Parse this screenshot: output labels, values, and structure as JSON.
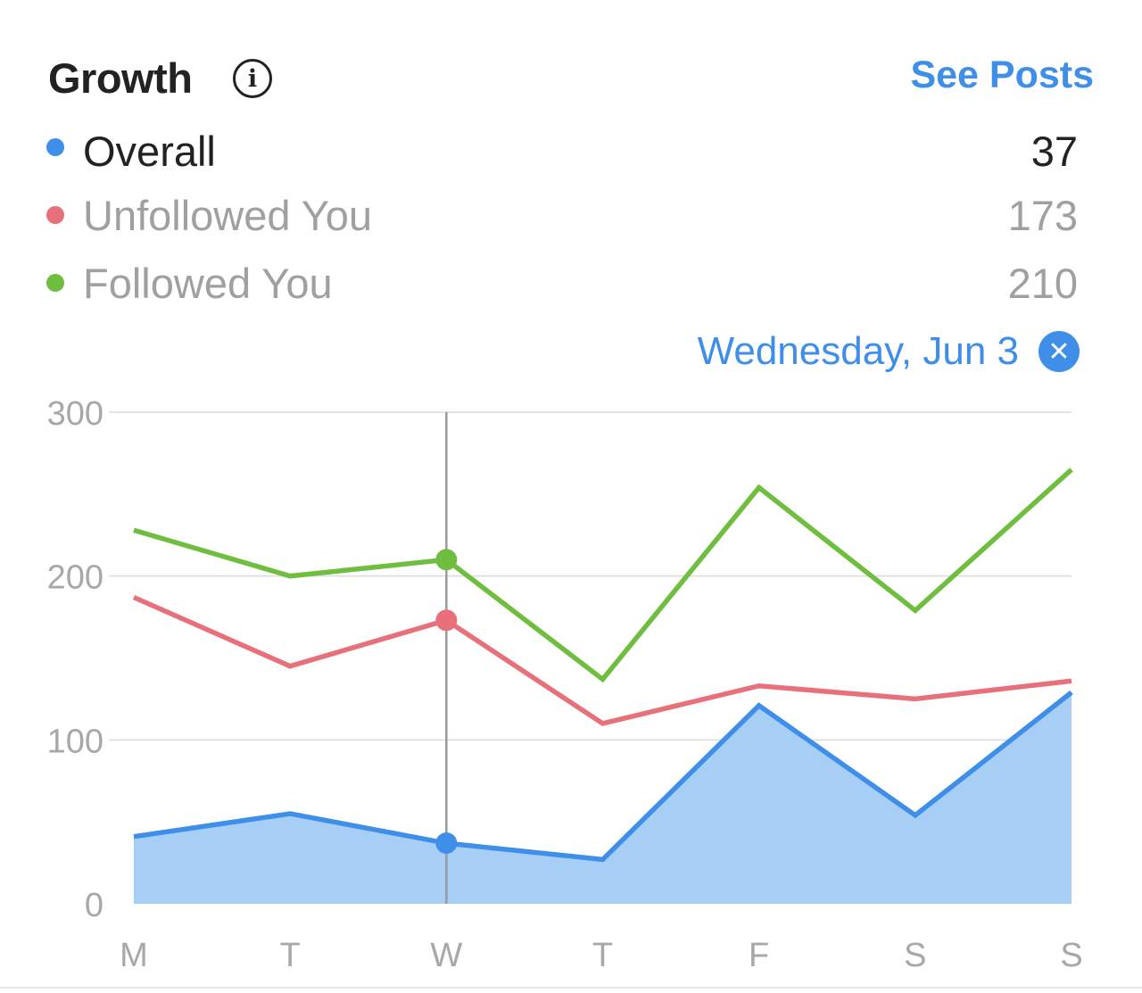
{
  "header": {
    "title": "Growth",
    "info_icon": "info-icon",
    "see_posts_label": "See Posts"
  },
  "legend": [
    {
      "label": "Overall",
      "value": "37",
      "color": "#3f8ee8"
    },
    {
      "label": "Unfollowed You",
      "value": "173",
      "color": "#e8707a"
    },
    {
      "label": "Followed You",
      "value": "210",
      "color": "#6fbe3f"
    }
  ],
  "selection": {
    "date_label": "Wednesday, Jun 3",
    "close_icon": "close-icon",
    "selected_index": 2
  },
  "chart_data": {
    "type": "line",
    "categories": [
      "M",
      "T",
      "W",
      "T",
      "F",
      "S",
      "S"
    ],
    "ylim": [
      0,
      300
    ],
    "yticks": [
      "0",
      "100",
      "200",
      "300"
    ],
    "grid": true,
    "series": [
      {
        "name": "Followed You",
        "color": "#6fbe3f",
        "values": [
          228,
          200,
          210,
          137,
          254,
          179,
          265
        ]
      },
      {
        "name": "Unfollowed You",
        "color": "#e8707a",
        "values": [
          187,
          145,
          173,
          110,
          133,
          125,
          136
        ]
      },
      {
        "name": "Overall",
        "color": "#3f8ee8",
        "fill": "#a7cff5",
        "area": true,
        "values": [
          41,
          55,
          37,
          27,
          121,
          54,
          129
        ]
      }
    ]
  }
}
